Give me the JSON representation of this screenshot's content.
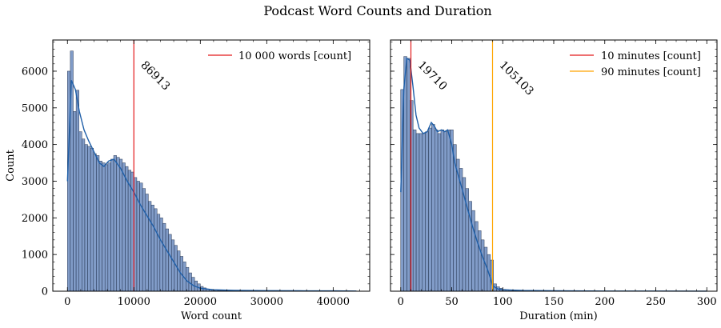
{
  "figure": {
    "title": "Podcast Word Counts and Duration"
  },
  "chart_data": [
    {
      "type": "histogram",
      "xlabel": "Word count",
      "ylabel": "Count",
      "xlim": [
        -2200,
        45500
      ],
      "ylim": [
        0,
        6850
      ],
      "xticks": [
        0,
        10000,
        20000,
        30000,
        40000
      ],
      "xtick_labels": [
        "0",
        "10000",
        "20000",
        "30000",
        "40000"
      ],
      "yticks": [
        0,
        1000,
        2000,
        3000,
        4000,
        5000,
        6000
      ],
      "ytick_labels": [
        "0",
        "1000",
        "2000",
        "3000",
        "4000",
        "5000",
        "6000"
      ],
      "bar_color": "#4C72B0",
      "kde_color": "#1f5fa8",
      "bin_width": 435,
      "bins_start": 0,
      "counts": [
        6000,
        6550,
        4900,
        5480,
        4350,
        4150,
        4000,
        3950,
        3900,
        3750,
        3700,
        3550,
        3500,
        3450,
        3500,
        3600,
        3700,
        3650,
        3600,
        3500,
        3400,
        3300,
        3250,
        3100,
        3000,
        2950,
        2800,
        2650,
        2450,
        2350,
        2250,
        2100,
        2000,
        1850,
        1700,
        1550,
        1400,
        1250,
        1100,
        950,
        800,
        650,
        500,
        380,
        280,
        200,
        130,
        90,
        60,
        40,
        30,
        25,
        20,
        18,
        15,
        12,
        10,
        9,
        8,
        7,
        6,
        5,
        5,
        4,
        4,
        3,
        3,
        3,
        2,
        2,
        2,
        2,
        2,
        2,
        2,
        2,
        1,
        1,
        1,
        1,
        1,
        1,
        1,
        1,
        1,
        1,
        1,
        1,
        1,
        1,
        1,
        1,
        1,
        1,
        1,
        1,
        1,
        1,
        1,
        1
      ],
      "kde": {
        "x": [
          0,
          600,
          1200,
          1800,
          2500,
          3200,
          4000,
          4800,
          5500,
          6200,
          7000,
          8000,
          9000,
          10000,
          11000,
          12000,
          13000,
          14000,
          15000,
          16000,
          17000,
          18000,
          19000,
          20000,
          22000,
          25000,
          30000,
          35000,
          40000,
          43500
        ],
        "y": [
          3000,
          5750,
          5500,
          4900,
          4400,
          4100,
          3800,
          3500,
          3400,
          3550,
          3600,
          3350,
          3000,
          2700,
          2350,
          2050,
          1750,
          1400,
          1100,
          800,
          500,
          280,
          150,
          80,
          40,
          25,
          15,
          10,
          8,
          5
        ]
      },
      "vline": {
        "x": 10000,
        "color": "#e41a1c",
        "legend": "10 000 words [count]",
        "annotation": "86913"
      }
    },
    {
      "type": "histogram",
      "xlabel": "Duration (min)",
      "ylabel": "",
      "xlim": [
        -10,
        310
      ],
      "ylim": [
        0,
        6850
      ],
      "xticks": [
        0,
        50,
        100,
        150,
        200,
        250,
        300
      ],
      "xtick_labels": [
        "0",
        "50",
        "100",
        "150",
        "200",
        "250",
        "300"
      ],
      "yticks": [
        0,
        1000,
        2000,
        3000,
        4000,
        5000,
        6000
      ],
      "bar_color": "#4C72B0",
      "kde_color": "#1f5fa8",
      "bin_width": 3.03,
      "bins_start": 0,
      "counts": [
        5500,
        6400,
        6350,
        5200,
        4400,
        4300,
        4300,
        4300,
        4350,
        4450,
        4550,
        4400,
        4300,
        4400,
        4350,
        4400,
        4400,
        4000,
        3600,
        3350,
        3100,
        2800,
        2450,
        2200,
        1900,
        1650,
        1400,
        1200,
        1000,
        850,
        200,
        120,
        80,
        50,
        40,
        30,
        25,
        20,
        18,
        15,
        12,
        10,
        9,
        8,
        7,
        6,
        5,
        5,
        4,
        4,
        3,
        3,
        3,
        2,
        2,
        2,
        2,
        2,
        2,
        2,
        2,
        1,
        1,
        1,
        1,
        1,
        1,
        1,
        1,
        1,
        1,
        1,
        1,
        1,
        1,
        1,
        1,
        1,
        1,
        1,
        1,
        1,
        1,
        1,
        1,
        1,
        1,
        1,
        1,
        1,
        1,
        1,
        1,
        1,
        1,
        1,
        1,
        1,
        1,
        1
      ],
      "kde": {
        "x": [
          0,
          3,
          6,
          9,
          12,
          15,
          18,
          22,
          26,
          30,
          33,
          36,
          40,
          43,
          46,
          50,
          53,
          56,
          60,
          65,
          70,
          75,
          80,
          85,
          88,
          90,
          95,
          100,
          120,
          150,
          200,
          250,
          300
        ],
        "y": [
          2700,
          5500,
          6350,
          6300,
          5600,
          4800,
          4450,
          4300,
          4350,
          4600,
          4500,
          4350,
          4400,
          4350,
          4400,
          4000,
          3500,
          3200,
          2800,
          2300,
          1800,
          1350,
          950,
          600,
          350,
          150,
          60,
          40,
          20,
          10,
          5,
          5,
          3
        ]
      },
      "vlines": [
        {
          "x": 10,
          "color": "#e41a1c",
          "legend": "10 minutes [count]",
          "annotation": "19710"
        },
        {
          "x": 90,
          "color": "#ffa500",
          "legend": "90 minutes [count]",
          "annotation": "105103"
        }
      ]
    }
  ]
}
